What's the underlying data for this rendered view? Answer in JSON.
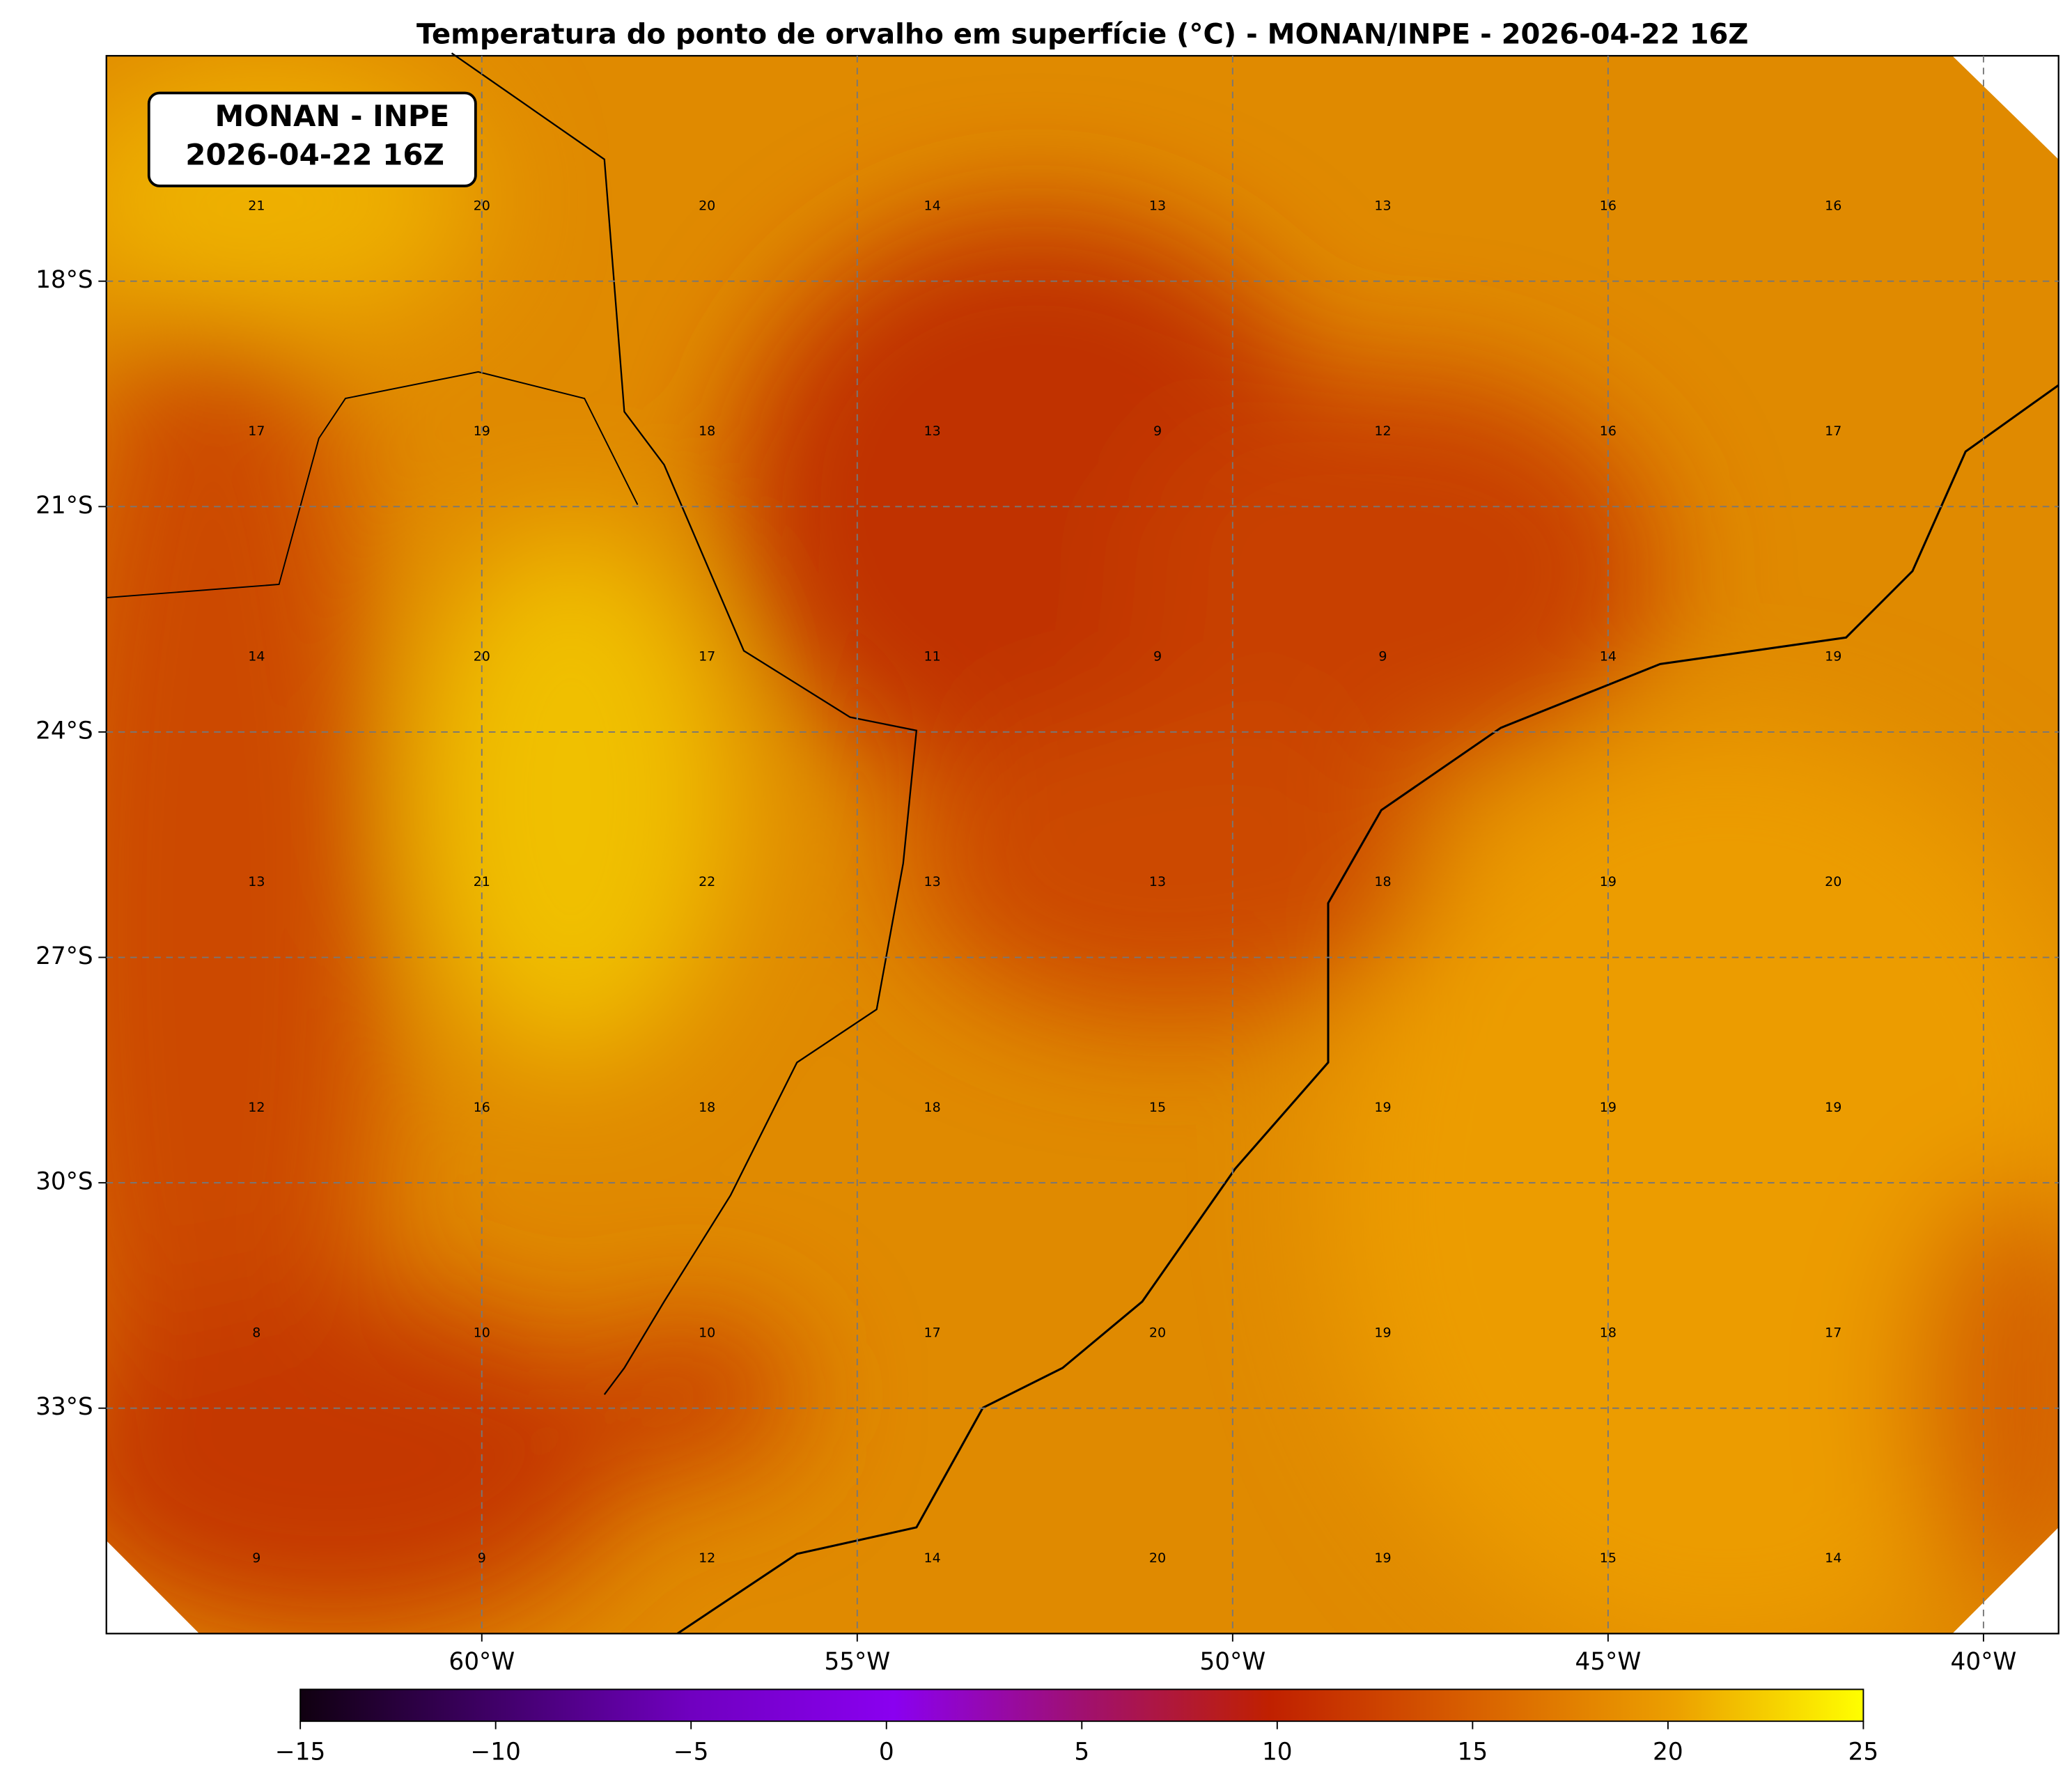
{
  "chart_data": {
    "type": "map",
    "title": "Temperatura do ponto de orvalho em superfície (°C) - MONAN/INPE - 2026-04-22 16Z",
    "annotation": [
      "MONAN - INPE",
      "2026-04-22 16Z"
    ],
    "xlim": [
      -65,
      -39
    ],
    "ylim": [
      -36,
      -15
    ],
    "xticks": [
      {
        "value": -60,
        "label": "60°W"
      },
      {
        "value": -55,
        "label": "55°W"
      },
      {
        "value": -50,
        "label": "50°W"
      },
      {
        "value": -45,
        "label": "45°W"
      },
      {
        "value": -40,
        "label": "40°W"
      }
    ],
    "yticks": [
      {
        "value": -18,
        "label": "18°S"
      },
      {
        "value": -21,
        "label": "21°S"
      },
      {
        "value": -24,
        "label": "24°S"
      },
      {
        "value": -27,
        "label": "27°S"
      },
      {
        "value": -30,
        "label": "30°S"
      },
      {
        "value": -33,
        "label": "33°S"
      }
    ],
    "grid": true,
    "x": [
      -63,
      -60,
      -57,
      -54,
      -51,
      -48,
      -45,
      -42,
      -63,
      -60,
      -57,
      -54,
      -51,
      -48,
      -45,
      -42,
      -63,
      -60,
      -57,
      -54,
      -51,
      -48,
      -45,
      -42,
      -63,
      -60,
      -57,
      -54,
      -51,
      -48,
      -45,
      -42,
      -63,
      -60,
      -57,
      -54,
      -51,
      -48,
      -45,
      -42,
      -63,
      -60,
      -57,
      -54,
      -51,
      -48,
      -45,
      -42,
      -63,
      -60,
      -57,
      -54,
      -51,
      -48,
      -45,
      -42
    ],
    "y": [
      -17,
      -17,
      -17,
      -17,
      -17,
      -17,
      -17,
      -17,
      -20,
      -20,
      -20,
      -20,
      -20,
      -20,
      -20,
      -20,
      -23,
      -23,
      -23,
      -23,
      -23,
      -23,
      -23,
      -23,
      -26,
      -26,
      -26,
      -26,
      -26,
      -26,
      -26,
      -26,
      -29,
      -29,
      -29,
      -29,
      -29,
      -29,
      -29,
      -29,
      -32,
      -32,
      -32,
      -32,
      -32,
      -32,
      -32,
      -32,
      -35,
      -35,
      -35,
      -35,
      -35,
      -35,
      -35,
      -35
    ],
    "values": [
      21,
      20,
      20,
      14,
      13,
      13,
      16,
      16,
      17,
      19,
      18,
      13,
      9,
      12,
      16,
      17,
      14,
      20,
      17,
      11,
      9,
      9,
      14,
      19,
      13,
      21,
      22,
      13,
      13,
      18,
      19,
      20,
      12,
      16,
      18,
      18,
      15,
      19,
      19,
      19,
      8,
      10,
      10,
      17,
      20,
      19,
      18,
      17,
      9,
      9,
      12,
      14,
      20,
      19,
      15,
      14
    ],
    "colorbar": {
      "lim": [
        -15,
        25
      ],
      "ticks": [
        {
          "value": -15,
          "label": "−15"
        },
        {
          "value": -10,
          "label": "−10"
        },
        {
          "value": -5,
          "label": "−5"
        },
        0,
        5,
        10,
        15,
        20,
        25
      ]
    }
  }
}
